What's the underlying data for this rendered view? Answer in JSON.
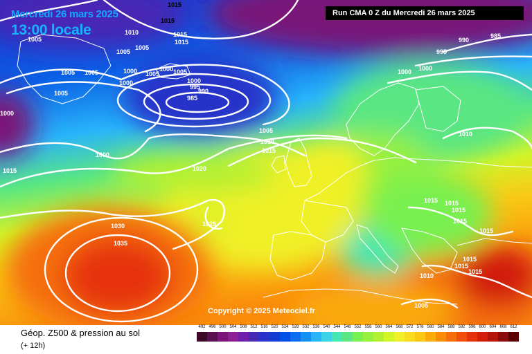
{
  "header": {
    "date_label": "Mercredi 26 mars 2025",
    "time_label": "13:00 locale",
    "run_label": "Run CMA 0 Z du Mercredi 26 mars 2025"
  },
  "footer": {
    "product_label": "Géop. Z500 & pression au sol",
    "lead_label": "(+ 12h)",
    "copyright": "Copyright © 2025 Meteociel.fr"
  },
  "color_scale": {
    "ticks": [
      "492",
      "496",
      "500",
      "504",
      "508",
      "512",
      "516",
      "520",
      "524",
      "528",
      "532",
      "536",
      "540",
      "544",
      "548",
      "552",
      "556",
      "560",
      "564",
      "568",
      "572",
      "576",
      "580",
      "584",
      "588",
      "592",
      "596",
      "600",
      "604",
      "608",
      "612"
    ],
    "colors": [
      "#3c0a28",
      "#5a0f50",
      "#7a1478",
      "#8c1e96",
      "#6e1eaa",
      "#4628b4",
      "#2832c8",
      "#143cd2",
      "#0050e6",
      "#0a6ef0",
      "#1490f5",
      "#28b4fa",
      "#3cd2e6",
      "#46e6b4",
      "#5ae682",
      "#78f050",
      "#96f03c",
      "#b4f032",
      "#d2f528",
      "#f0f028",
      "#fadc1e",
      "#fac814",
      "#faaa0a",
      "#fa8c0a",
      "#f56e0a",
      "#f0500a",
      "#e6320a",
      "#d21e0a",
      "#b4140a",
      "#8c0a0a",
      "#5a0000"
    ]
  },
  "isobar_labels": [
    {
      "id": "l1015a",
      "text": "1015"
    },
    {
      "id": "l1015b",
      "text": "1015"
    },
    {
      "id": "l1005a",
      "text": "1005"
    },
    {
      "id": "l1010a",
      "text": "1010"
    },
    {
      "id": "l1015c",
      "text": "1015"
    },
    {
      "id": "l1015d",
      "text": "1015"
    },
    {
      "id": "l1005b",
      "text": "1005"
    },
    {
      "id": "l1005c",
      "text": "1005"
    },
    {
      "id": "l1005d",
      "text": "1005"
    },
    {
      "id": "l1005e",
      "text": "1005"
    },
    {
      "id": "l1000a",
      "text": "1000"
    },
    {
      "id": "l1005f",
      "text": "1005"
    },
    {
      "id": "l1000b",
      "text": "1000"
    },
    {
      "id": "l1005g",
      "text": "1005"
    },
    {
      "id": "l1005h",
      "text": "1005"
    },
    {
      "id": "l1000c",
      "text": "1000"
    },
    {
      "id": "l1000d",
      "text": "1000"
    },
    {
      "id": "l995a",
      "text": "995"
    },
    {
      "id": "l990a",
      "text": "990"
    },
    {
      "id": "l985a",
      "text": "985"
    },
    {
      "id": "l1005i",
      "text": "1005"
    },
    {
      "id": "l1000e",
      "text": "1000"
    },
    {
      "id": "l1005j",
      "text": "1005"
    },
    {
      "id": "l1010b",
      "text": "1010"
    },
    {
      "id": "l1015e",
      "text": "1015"
    },
    {
      "id": "l1000f",
      "text": "1000"
    },
    {
      "id": "l1015f",
      "text": "1015"
    },
    {
      "id": "l1020a",
      "text": "1020"
    },
    {
      "id": "l1025a",
      "text": "1025"
    },
    {
      "id": "l1030a",
      "text": "1030"
    },
    {
      "id": "l1035a",
      "text": "1035"
    },
    {
      "id": "l990b",
      "text": "990"
    },
    {
      "id": "l985b",
      "text": "985"
    },
    {
      "id": "l995b",
      "text": "995"
    },
    {
      "id": "l1000g",
      "text": "1000"
    },
    {
      "id": "l1000h",
      "text": "1000"
    },
    {
      "id": "l1010c",
      "text": "1010"
    },
    {
      "id": "l1015g",
      "text": "1015"
    },
    {
      "id": "l1015h",
      "text": "1015"
    },
    {
      "id": "l1015i",
      "text": "1015"
    },
    {
      "id": "l1015j",
      "text": "1015"
    },
    {
      "id": "l1015k",
      "text": "1015"
    },
    {
      "id": "l1015l",
      "text": "1015"
    },
    {
      "id": "l1015m",
      "text": "1015"
    },
    {
      "id": "l1015n",
      "text": "1015"
    },
    {
      "id": "l1010d",
      "text": "1010"
    },
    {
      "id": "l1005k",
      "text": "1005"
    }
  ]
}
